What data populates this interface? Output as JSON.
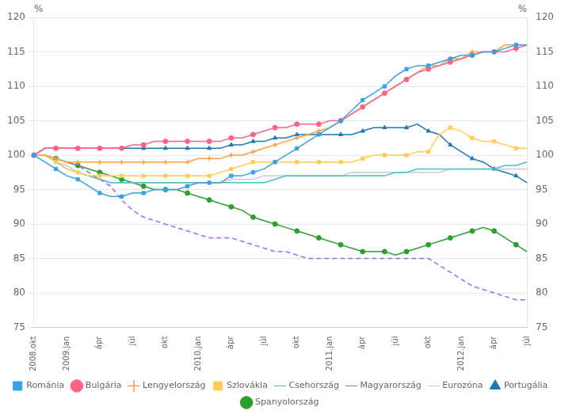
{
  "chart_data": {
    "type": "line",
    "ylabel": "%",
    "y2label": "%",
    "categories": [
      "2008.okt",
      null,
      null,
      "2009.jan",
      null,
      null,
      "ápr",
      null,
      null,
      "júl",
      null,
      null,
      "okt",
      null,
      null,
      "2010.jan",
      null,
      null,
      "ápr",
      null,
      null,
      "júl",
      null,
      null,
      "okt",
      null,
      null,
      "2011.jan",
      null,
      null,
      "ápr",
      null,
      null,
      "júl",
      null,
      null,
      "okt",
      null,
      null,
      "2012.jan",
      null,
      null,
      "ápr",
      null,
      null,
      "júl"
    ],
    "ylim": [
      75,
      120
    ],
    "yticks": [
      75,
      80,
      85,
      90,
      95,
      100,
      105,
      110,
      115,
      120
    ],
    "y2lim": [
      75,
      120
    ],
    "y2ticks": [
      75,
      80,
      85,
      90,
      95,
      100,
      105,
      110,
      115,
      120
    ],
    "grid": "y",
    "legend": "bottom",
    "series": [
      {
        "name": "Románia",
        "marker": "square",
        "line_style": "solid",
        "values": [
          100,
          99,
          98,
          97,
          96.5,
          95.5,
          94.5,
          94,
          94,
          94.5,
          94.5,
          95,
          95,
          95,
          95.5,
          96,
          96,
          96,
          97,
          97,
          97.5,
          98,
          99,
          100,
          101,
          102,
          103,
          104,
          105,
          106.5,
          108,
          109,
          110,
          111.5,
          112.5,
          113,
          113,
          113.5,
          114,
          114.5,
          114.5,
          115,
          115,
          115.5,
          116,
          116
        ]
      },
      {
        "name": "Bulgária",
        "marker": "circle",
        "line_style": "solid",
        "values": [
          100,
          101,
          101,
          101,
          101,
          101,
          101,
          101,
          101,
          101.5,
          101.5,
          102,
          102,
          102,
          102,
          102,
          102,
          102,
          102.5,
          102.5,
          103,
          103.5,
          104,
          104,
          104.5,
          104.5,
          104.5,
          105,
          105,
          106,
          107,
          108,
          109,
          110,
          111,
          112,
          112.5,
          113,
          113.5,
          114,
          114.5,
          115,
          115,
          115,
          115.5,
          116
        ]
      },
      {
        "name": "Lengyelország",
        "marker": "plus",
        "line_style": "solid",
        "values": [
          100,
          100,
          99.5,
          99,
          99,
          99,
          99,
          99,
          99,
          99,
          99,
          99,
          99,
          99,
          99,
          99.5,
          99.5,
          99.5,
          100,
          100,
          100.5,
          101,
          101.5,
          102,
          102.5,
          103,
          103.5,
          104,
          105,
          106,
          107,
          108,
          109,
          110,
          111,
          112,
          113,
          113,
          114,
          114,
          115,
          115,
          115,
          116,
          116,
          116
        ]
      },
      {
        "name": "Szlovákia",
        "marker": "square",
        "line_style": "solid",
        "values": [
          100,
          100,
          99,
          98,
          97.5,
          97,
          97,
          97,
          97,
          97,
          97,
          97,
          97,
          97,
          97,
          97,
          97,
          97.5,
          98,
          98.5,
          99,
          99,
          99,
          99,
          99,
          99,
          99,
          99,
          99,
          99,
          99.5,
          100,
          100,
          100,
          100,
          100.5,
          100.5,
          103,
          104,
          103.5,
          102.5,
          102,
          102,
          101.5,
          101,
          101
        ]
      },
      {
        "name": "Csehország",
        "marker": "none",
        "line_style": "solid",
        "values": [
          100,
          100,
          99,
          98,
          97.5,
          97,
          96.5,
          96,
          96,
          96,
          96,
          96,
          96,
          96,
          96,
          96,
          96,
          96,
          96,
          96,
          96,
          96,
          96.5,
          97,
          97,
          97,
          97,
          97,
          97,
          97,
          97,
          97,
          97,
          97.5,
          97.5,
          98,
          98,
          98,
          98,
          98,
          98,
          98,
          98,
          98.5,
          98.5,
          99
        ]
      },
      {
        "name": "Magyarország",
        "marker": "none",
        "line_style": "dashed",
        "values": [
          100,
          100,
          99.5,
          99,
          98.5,
          97.5,
          96.5,
          95.5,
          93.5,
          92,
          91,
          90.5,
          90,
          89.5,
          89,
          88.5,
          88,
          88,
          88,
          87.5,
          87,
          86.5,
          86,
          86,
          85.5,
          85,
          85,
          85,
          85,
          85,
          85,
          85,
          85,
          85,
          85,
          85,
          85,
          84,
          83,
          82,
          81,
          80.5,
          80,
          79.5,
          79,
          79
        ]
      },
      {
        "name": "Eurozóna",
        "marker": "none",
        "line_style": "solid",
        "values": [
          100,
          100,
          99,
          98.5,
          97.5,
          97,
          96.5,
          96,
          96,
          96,
          96,
          96,
          96,
          96,
          96,
          96,
          96,
          96,
          96.5,
          96.5,
          96.5,
          97,
          97,
          97,
          97,
          97,
          97,
          97,
          97,
          97.5,
          97.5,
          97.5,
          97.5,
          97.5,
          97.5,
          97.5,
          97.5,
          97.5,
          98,
          98,
          98,
          98,
          98,
          98,
          98,
          98
        ]
      },
      {
        "name": "Portugália",
        "marker": "triangle",
        "line_style": "solid",
        "values": [
          100,
          101,
          101,
          101,
          101,
          101,
          101,
          101,
          101,
          101,
          101,
          101,
          101,
          101,
          101,
          101,
          101,
          101,
          101.5,
          101.5,
          102,
          102,
          102.5,
          102.5,
          103,
          103,
          103,
          103,
          103,
          103,
          103.5,
          104,
          104,
          104,
          104,
          104.5,
          103.5,
          103,
          101.5,
          100.5,
          99.5,
          99,
          98,
          97.5,
          97,
          96
        ]
      },
      {
        "name": "Spanyolország",
        "marker": "circle",
        "line_style": "solid",
        "values": [
          100,
          100,
          99.5,
          99,
          98.5,
          98,
          97.5,
          97,
          96.5,
          96,
          95.5,
          95,
          95,
          95,
          94.5,
          94,
          93.5,
          93,
          92.5,
          92,
          91,
          90.5,
          90,
          89.5,
          89,
          88.5,
          88,
          87.5,
          87,
          86.5,
          86,
          86,
          86,
          85.5,
          86,
          86.5,
          87,
          87.5,
          88,
          88.5,
          89,
          89.5,
          89,
          88,
          87,
          86
        ]
      }
    ]
  }
}
